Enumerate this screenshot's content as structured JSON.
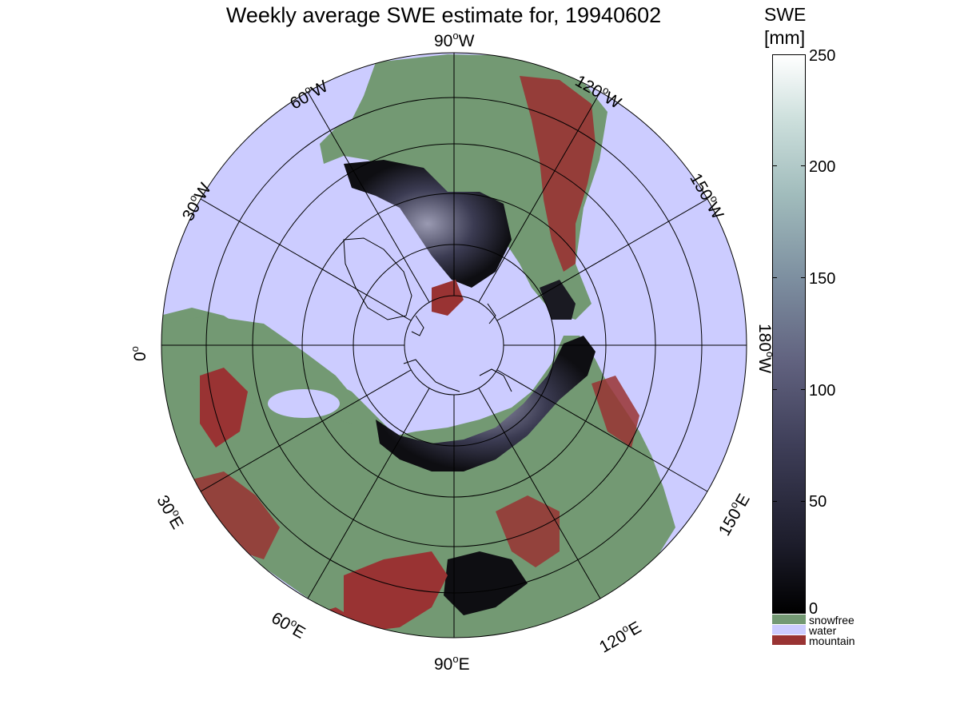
{
  "title": "Weekly average SWE estimate for, 19940602",
  "colorbar": {
    "title_line1": "SWE",
    "title_line2": "[mm]",
    "ticks": [
      "250",
      "200",
      "150",
      "100",
      "50",
      "0"
    ],
    "range": [
      0,
      250
    ],
    "colors": [
      "#000000",
      "#3e3e58",
      "#7d8fa0",
      "#cbdedb",
      "#ffffff"
    ]
  },
  "categories": [
    {
      "label": "snowfree",
      "color": "#739973"
    },
    {
      "label": "water",
      "color": "#ccccff"
    },
    {
      "label": "mountain",
      "color": "#993333"
    }
  ],
  "lon_labels": {
    "l90w": "90",
    "l90w_dir": "W",
    "l120w": "120",
    "l120w_dir": "W",
    "l150w": "150",
    "l150w_dir": "W",
    "l180w": "180",
    "l180w_dir": "W",
    "l150e": "150",
    "l150e_dir": "E",
    "l120e": "120",
    "l120e_dir": "E",
    "l90e": "90",
    "l90e_dir": "E",
    "l60e": "60",
    "l60e_dir": "E",
    "l30e": "30",
    "l30e_dir": "E",
    "l0": "0",
    "l0_dir": "",
    "l30w": "30",
    "l30w_dir": "W",
    "l60w": "60",
    "l60w_dir": "W"
  },
  "map_colors": {
    "water": "#ccccff",
    "land": "#739973",
    "mountain": "#993333",
    "snow_dark": "#101014",
    "snow_mid": "#3b3b52",
    "snow_light": "#8a8aa3"
  }
}
